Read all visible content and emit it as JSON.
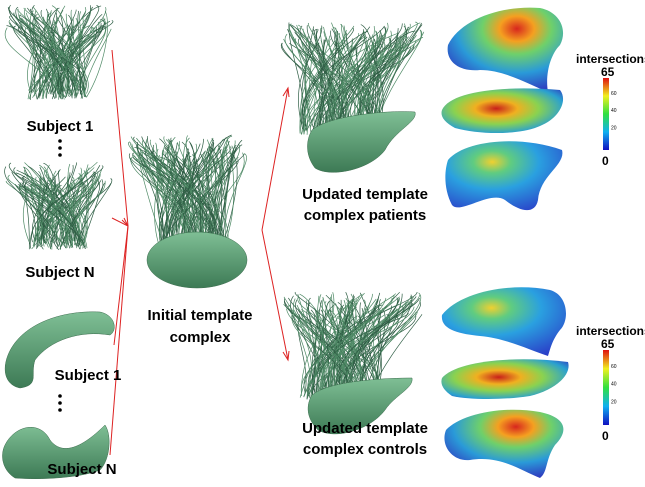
{
  "labels": {
    "fibers_subject_1": "Subject 1",
    "fibers_subject_n": "Subject N",
    "surface_subject_1": "Subject 1",
    "surface_subject_n": "Subject N",
    "initial_template": [
      "Initial template",
      "complex"
    ],
    "updated_patients": [
      "Updated template",
      "complex patients"
    ],
    "updated_controls": [
      "Updated template",
      "complex controls"
    ]
  },
  "colorbars": [
    {
      "title": "intersections",
      "max": "65",
      "ticks": [
        "60",
        "40",
        "20"
      ],
      "min": "0"
    },
    {
      "title": "intersections",
      "max": "65",
      "ticks": [
        "60",
        "40",
        "20"
      ],
      "min": "0"
    }
  ]
}
